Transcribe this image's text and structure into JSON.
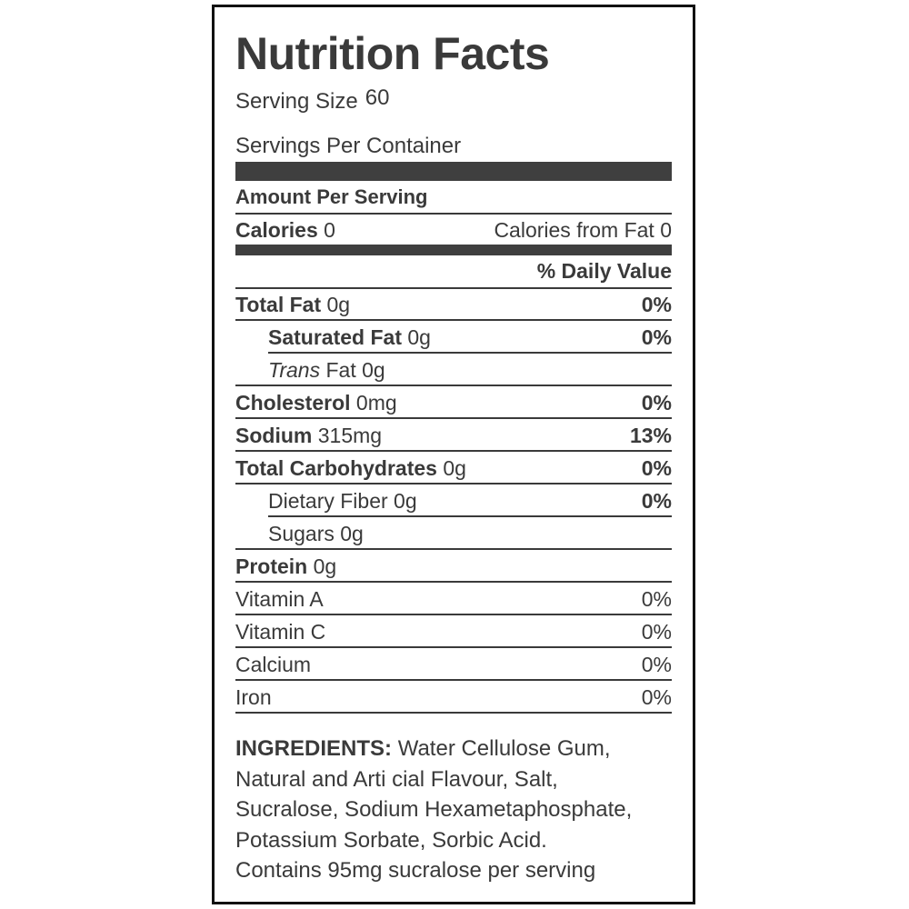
{
  "title": "Nutrition Facts",
  "serving_size": {
    "label": "Serving Size",
    "value": "60"
  },
  "servings_per_container": {
    "label": "Servings Per Container"
  },
  "amount_per_serving": "Amount Per Serving",
  "calories": {
    "label": "Calories",
    "value": "0",
    "from_fat": "Calories from Fat 0"
  },
  "daily_value_header": "% Daily Value",
  "nutrients": [
    {
      "name": "Total Fat",
      "amount": "0g",
      "dv": "0%"
    },
    {
      "name": "Saturated Fat",
      "amount": "0g",
      "dv": "0%"
    },
    {
      "name_italic": "Trans",
      "name": "Fat",
      "amount": "0g"
    },
    {
      "name": "Cholesterol",
      "amount": "0mg",
      "dv": "0%"
    },
    {
      "name": "Sodium",
      "amount": "315mg",
      "dv": "13%"
    },
    {
      "name": "Total Carbohydrates",
      "amount": "0g",
      "dv": "0%"
    },
    {
      "name": "Dietary Fiber",
      "amount": "0g",
      "dv": "0%"
    },
    {
      "name": "Sugars",
      "amount": "0g"
    },
    {
      "name": "Protein",
      "amount": "0g"
    }
  ],
  "vitamins": [
    {
      "name": "Vitamin A",
      "dv": "0%"
    },
    {
      "name": "Vitamin C",
      "dv": "0%"
    },
    {
      "name": "Calcium",
      "dv": "0%"
    },
    {
      "name": "Iron",
      "dv": "0%"
    }
  ],
  "ingredients": {
    "label": "INGREDIENTS:",
    "lines": [
      "Water Cellulose Gum,",
      "Natural and Arti cial Flavour, Salt,",
      "Sucralose, Sodium Hexametaphosphate,",
      "Potassium Sorbate, Sorbic Acid.",
      "Contains 95mg sucralose per serving"
    ]
  }
}
